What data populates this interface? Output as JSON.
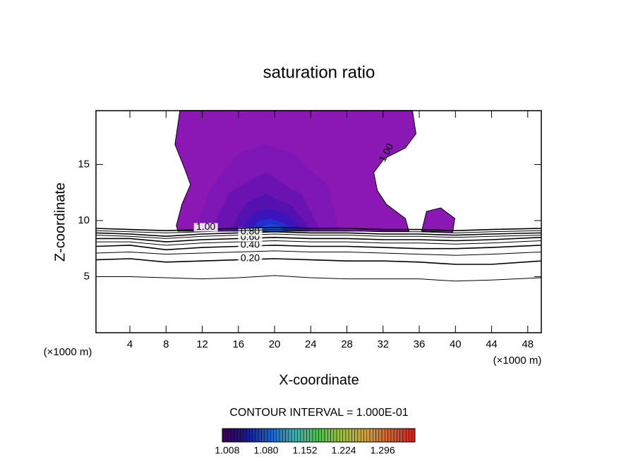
{
  "chart_data": {
    "type": "contour",
    "title": "saturation ratio",
    "x_label": "X-coordinate",
    "y_label": "Z-coordinate",
    "x_unit": "(×1000 m)",
    "subtitle": "CONTOUR INTERVAL = 1.000E-01",
    "xlim": [
      0.25,
      49.5
    ],
    "ylim": [
      0,
      19.8
    ],
    "xticks": [
      4,
      8,
      12,
      16,
      20,
      24,
      28,
      32,
      36,
      40,
      44,
      48
    ],
    "yticks": [
      5,
      10,
      15
    ],
    "x": [
      0.25,
      4,
      8,
      12,
      16,
      20,
      24,
      28,
      32,
      36,
      40,
      44,
      49.5
    ],
    "series": [
      {
        "values": [
          5.0,
          5.0,
          4.9,
          4.8,
          4.9,
          5.1,
          4.9,
          4.8,
          4.8,
          4.8,
          4.6,
          4.7,
          4.9
        ]
      },
      {
        "name": "0.20",
        "values": [
          6.5,
          6.6,
          6.3,
          6.4,
          6.5,
          6.6,
          6.5,
          6.4,
          6.4,
          6.3,
          6.1,
          6.1,
          6.4
        ]
      },
      {
        "values": [
          7.1,
          7.2,
          7.0,
          7.1,
          7.2,
          7.3,
          7.2,
          7.2,
          7.1,
          7.0,
          6.9,
          7.0,
          7.2
        ]
      },
      {
        "name": "0.40",
        "values": [
          7.7,
          7.8,
          7.4,
          7.6,
          7.7,
          7.8,
          7.7,
          7.7,
          7.6,
          7.5,
          7.5,
          7.6,
          7.8
        ]
      },
      {
        "values": [
          8.1,
          8.1,
          7.8,
          8.0,
          8.1,
          8.2,
          8.1,
          8.1,
          8.0,
          8.0,
          7.9,
          8.0,
          8.2
        ]
      },
      {
        "name": "0.60",
        "values": [
          8.4,
          8.4,
          8.1,
          8.3,
          8.4,
          8.5,
          8.4,
          8.4,
          8.3,
          8.3,
          8.2,
          8.3,
          8.5
        ]
      },
      {
        "values": [
          8.7,
          8.6,
          8.4,
          8.6,
          8.7,
          8.8,
          8.7,
          8.7,
          8.6,
          8.6,
          8.5,
          8.6,
          8.7
        ]
      },
      {
        "name": "0.80",
        "values": [
          8.9,
          8.8,
          8.6,
          8.8,
          8.9,
          9.0,
          8.9,
          8.9,
          8.8,
          8.8,
          8.7,
          8.8,
          8.9
        ]
      },
      {
        "values": [
          9.1,
          9.0,
          8.9,
          9.0,
          9.1,
          9.2,
          9.1,
          9.1,
          9.0,
          9.0,
          8.9,
          9.0,
          9.1
        ]
      },
      {
        "name": "1.00",
        "values": [
          9.3,
          9.2,
          9.1,
          9.2,
          9.3,
          9.4,
          9.3,
          9.3,
          9.2,
          9.2,
          9.1,
          9.2,
          9.3
        ]
      }
    ],
    "regions": [
      {
        "color": "#8c18b4",
        "x": [
          9.53,
          8.98,
          10.08,
          10.7,
          9.76,
          9.14,
          9.3,
          34.86,
          34.47,
          32.37,
          31.36,
          30.97,
          32.13,
          34.47,
          35.64,
          35.25
        ],
        "values": [
          19.81,
          16.79,
          14.59,
          13.21,
          11.45,
          9.56,
          9.06,
          9.06,
          10.19,
          11.45,
          12.7,
          14.28,
          15.53,
          16.48,
          17.74,
          19.81
        ]
      },
      {
        "color": "#8c18b4",
        "x": [
          36.26,
          36.81,
          38.37,
          39.93,
          39.7
        ],
        "values": [
          9.06,
          10.82,
          11.13,
          10.19,
          8.93
        ]
      },
      {
        "color": "#7d16b5",
        "x": [
          11.1,
          13.0,
          16.0,
          19.0,
          22.0,
          26.0,
          27.1
        ],
        "values": [
          9.06,
          13.0,
          16.0,
          16.8,
          16.0,
          13.0,
          9.06
        ]
      },
      {
        "color": "#6a12b2",
        "x": [
          13.0,
          15.0,
          19.0,
          23.0,
          25.1
        ],
        "values": [
          9.06,
          12.5,
          14.3,
          12.3,
          9.06
        ]
      },
      {
        "color": "#5510b0",
        "x": [
          15.0,
          16.8,
          19.0,
          22.0,
          24.0
        ],
        "values": [
          9.06,
          11.5,
          12.4,
          11.3,
          9.06
        ]
      },
      {
        "color": "#3c14bc",
        "x": [
          16.2,
          17.6,
          19.2,
          21.5,
          23.2
        ],
        "values": [
          9.06,
          10.6,
          11.1,
          10.5,
          9.06
        ]
      },
      {
        "color": "#2030d0",
        "x": [
          17.0,
          18.2,
          19.4,
          21.0,
          22.4
        ],
        "values": [
          9.06,
          9.9,
          10.2,
          9.8,
          9.06
        ]
      },
      {
        "color": "#0a50f0",
        "x": [
          17.7,
          18.8,
          19.6,
          20.5,
          21.2
        ],
        "values": [
          9.06,
          9.5,
          9.7,
          9.5,
          9.06
        ]
      }
    ],
    "colorbar": {
      "clim": [
        0.999,
        1.356
      ],
      "ticks": [
        {
          "value": 1.008,
          "label": "1.008"
        },
        {
          "value": 1.08,
          "label": "1.080"
        },
        {
          "value": 1.152,
          "label": "1.152"
        },
        {
          "value": 1.224,
          "label": "1.224"
        },
        {
          "value": 1.296,
          "label": "1.296"
        }
      ],
      "colors": [
        "#3a0048",
        "#1a1890",
        "#1860d0",
        "#40b0b0",
        "#50c050",
        "#a0c040",
        "#d0a040",
        "#d06030",
        "#d02020"
      ]
    }
  }
}
